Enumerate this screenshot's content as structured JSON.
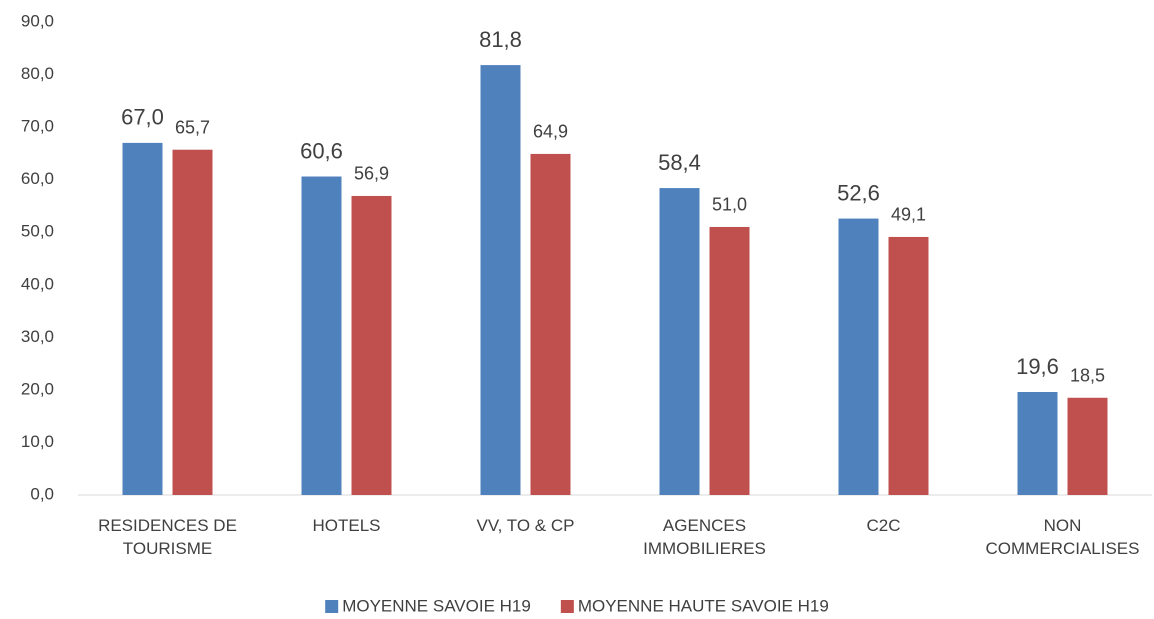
{
  "chart_data": {
    "type": "bar",
    "categories": [
      "RESIDENCES DE TOURISME",
      "HOTELS",
      "VV, TO & CP",
      "AGENCES IMMOBILIERES",
      "C2C",
      "NON COMMERCIALISES"
    ],
    "series": [
      {
        "name": "MOYENNE SAVOIE H19",
        "color": "#4f81bd",
        "values": [
          67.0,
          60.6,
          81.8,
          58.4,
          52.6,
          19.6
        ],
        "value_labels": [
          "67,0",
          "60,6",
          "81,8",
          "58,4",
          "52,6",
          "19,6"
        ]
      },
      {
        "name": "MOYENNE HAUTE SAVOIE H19",
        "color": "#c0504d",
        "values": [
          65.7,
          56.9,
          64.9,
          51.0,
          49.1,
          18.5
        ],
        "value_labels": [
          "65,7",
          "56,9",
          "64,9",
          "51,0",
          "49,1",
          "18,5"
        ]
      }
    ],
    "ylim": [
      0,
      90
    ],
    "yticks": [
      {
        "value": 0,
        "label": "0,0"
      },
      {
        "value": 10,
        "label": "10,0"
      },
      {
        "value": 20,
        "label": "20,0"
      },
      {
        "value": 30,
        "label": "30,0"
      },
      {
        "value": 40,
        "label": "40,0"
      },
      {
        "value": 50,
        "label": "50,0"
      },
      {
        "value": 60,
        "label": "60,0"
      },
      {
        "value": 70,
        "label": "70,0"
      },
      {
        "value": 80,
        "label": "80,0"
      },
      {
        "value": 90,
        "label": "90,0"
      }
    ],
    "grid": false,
    "legend": "bottom"
  }
}
